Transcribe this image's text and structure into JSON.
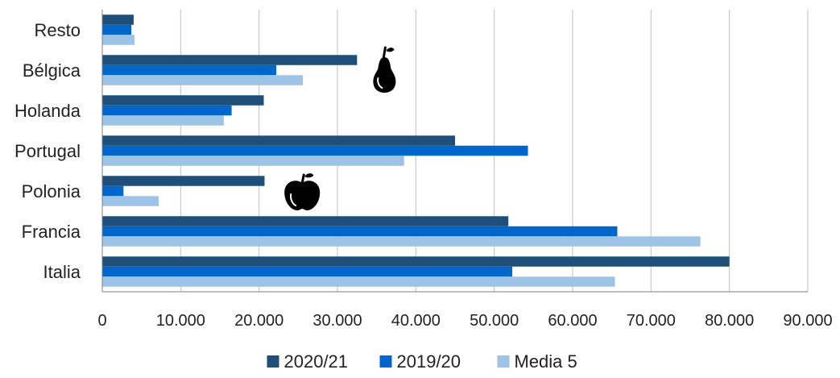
{
  "chart_data": {
    "type": "bar",
    "orientation": "horizontal",
    "categories": [
      "Resto",
      "Bélgica",
      "Holanda",
      "Portugal",
      "Polonia",
      "Francia",
      "Italia"
    ],
    "series": [
      {
        "name": "2020/21",
        "color": "#1f4e79",
        "values": [
          4000,
          32500,
          20600,
          45000,
          20700,
          51800,
          80000
        ]
      },
      {
        "name": "2019/20",
        "color": "#0066cc",
        "values": [
          3700,
          22200,
          16500,
          54300,
          2700,
          65700,
          52300
        ]
      },
      {
        "name": "Media 5",
        "color": "#9dc3e6",
        "values": [
          4100,
          25600,
          15500,
          38500,
          7200,
          76300,
          65400
        ]
      }
    ],
    "xlim": [
      0,
      90000
    ],
    "xticks": [
      0,
      10000,
      20000,
      30000,
      40000,
      50000,
      60000,
      70000,
      80000,
      90000
    ],
    "xtick_labels": [
      "0",
      "10.000",
      "20.000",
      "30.000",
      "40.000",
      "50.000",
      "60.000",
      "70.000",
      "80.000",
      "90.000"
    ],
    "grid": "vertical",
    "legend_position": "bottom",
    "annotations": [
      {
        "type": "icon",
        "name": "pear-icon",
        "x": 36000,
        "category": "Bélgica"
      },
      {
        "type": "icon",
        "name": "apple-icon",
        "x": 25500,
        "category": "Polonia"
      }
    ]
  }
}
